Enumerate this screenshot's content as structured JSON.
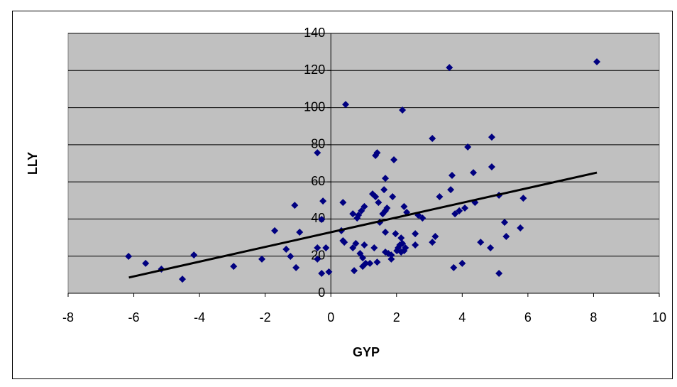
{
  "chart_data": {
    "type": "scatter",
    "x_label": "GYP",
    "y_label": "LLY",
    "xlim": [
      -8,
      10
    ],
    "xticks": [
      -8,
      -6,
      -4,
      -2,
      0,
      2,
      4,
      6,
      8,
      10
    ],
    "ylim": [
      0,
      140
    ],
    "yticks": [
      0,
      20,
      40,
      60,
      80,
      100,
      120,
      140
    ],
    "grid": true,
    "series": [
      {
        "color": "#000080",
        "x": [
          -6.16,
          -5.64,
          -5.16,
          -4.52,
          -4.17,
          -2.96,
          -2.1,
          -1.71,
          -1.36,
          -1.23,
          -1.1,
          -1.06,
          -0.95,
          -0.41,
          -0.41,
          -0.41,
          -0.28,
          -0.24,
          -0.28,
          -0.15,
          -0.06,
          0.32,
          0.37,
          0.37,
          0.41,
          0.45,
          0.67,
          0.67,
          0.71,
          0.76,
          0.8,
          0.84,
          0.89,
          0.93,
          0.97,
          0.97,
          1.02,
          1.02,
          1.06,
          1.19,
          1.27,
          1.32,
          1.36,
          1.36,
          1.41,
          1.41,
          1.45,
          1.49,
          1.58,
          1.62,
          1.66,
          1.66,
          1.66,
          1.66,
          1.71,
          1.75,
          1.84,
          1.84,
          1.88,
          1.92,
          1.97,
          2.01,
          2.05,
          2.1,
          2.14,
          2.14,
          2.18,
          2.18,
          2.23,
          2.23,
          2.27,
          2.31,
          2.57,
          2.57,
          2.66,
          2.79,
          3.09,
          3.09,
          3.18,
          3.31,
          3.61,
          3.65,
          3.69,
          3.74,
          3.78,
          3.91,
          4.0,
          4.08,
          4.17,
          4.34,
          4.39,
          4.56,
          4.86,
          4.9,
          4.9,
          5.12,
          5.12,
          5.29,
          5.34,
          5.77,
          5.86,
          8.1
        ],
        "values": [
          19.9,
          16.1,
          13,
          7.6,
          20.6,
          14.5,
          18.4,
          33.7,
          23.7,
          19.9,
          47.4,
          13.8,
          32.9,
          75.7,
          18.4,
          24.5,
          39.8,
          49.7,
          10.7,
          24.5,
          11.5,
          33.7,
          48.9,
          28.3,
          27.5,
          101.7,
          42.8,
          24.5,
          12.2,
          26.8,
          40.5,
          42.1,
          21.4,
          44.4,
          14.5,
          19.1,
          46.7,
          26,
          16.1,
          16.1,
          53.5,
          24.5,
          74.2,
          52,
          75.7,
          16.8,
          48.9,
          38.2,
          42.8,
          55.8,
          61.9,
          44.4,
          32.9,
          22.2,
          45.9,
          21.4,
          20.6,
          18.4,
          52,
          71.9,
          32.1,
          22.9,
          24.5,
          26,
          29.8,
          22.2,
          98.7,
          26.8,
          46.7,
          22.9,
          24.5,
          43.6,
          26,
          32.1,
          42.1,
          40.5,
          83.4,
          27.5,
          30.6,
          52,
          121.6,
          55.8,
          63.5,
          13.8,
          42.8,
          44.4,
          16.1,
          45.9,
          78.8,
          65,
          48.9,
          27.5,
          24.5,
          84.1,
          68.1,
          52.8,
          10.7,
          38.2,
          30.6,
          35.2,
          51.2,
          124.7
        ]
      }
    ],
    "trendline": {
      "color": "#000000",
      "x": [
        -6.15,
        8.1
      ],
      "y": [
        8.5,
        65
      ]
    }
  }
}
